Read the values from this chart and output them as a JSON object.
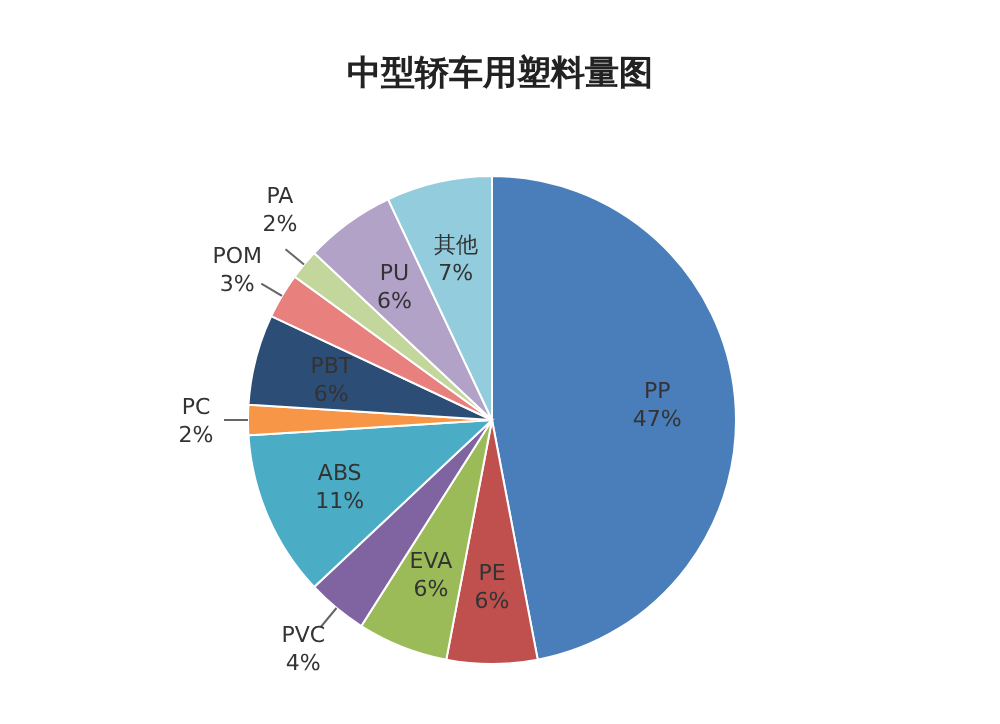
{
  "chart_data": {
    "type": "pie",
    "title": "中型轿车用塑料量图",
    "categories": [
      "PP",
      "PE",
      "EVA",
      "PVC",
      "ABS",
      "PC",
      "PBT",
      "POM",
      "PA",
      "PU",
      "其他"
    ],
    "values": [
      47,
      6,
      6,
      4,
      11,
      2,
      6,
      3,
      2,
      6,
      7
    ],
    "value_labels": [
      "47%",
      "6%",
      "6%",
      "4%",
      "11%",
      "2%",
      "6%",
      "3%",
      "2%",
      "6%",
      "7%"
    ],
    "colors": [
      "#4a7ebb",
      "#c0504d",
      "#9bbb59",
      "#8064a2",
      "#4bacc6",
      "#f79646",
      "#2c4d75",
      "#e8807e",
      "#c3d69b",
      "#b3a2c7",
      "#93cddd"
    ]
  }
}
